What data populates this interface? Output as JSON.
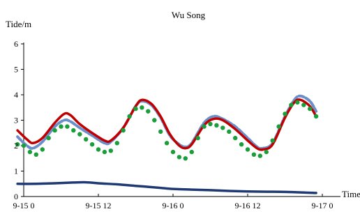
{
  "chart_data": {
    "type": "line",
    "title": "Wu Song",
    "ylabel": "Tide/m",
    "xlabel": "Time",
    "ylim": [
      0,
      6
    ],
    "yticks": [
      0,
      1,
      2,
      3,
      4,
      5,
      6
    ],
    "xlim": [
      0,
      48
    ],
    "xticks": [
      {
        "x": 0,
        "label": "9-15 0"
      },
      {
        "x": 12,
        "label": "9-15 12"
      },
      {
        "x": 24,
        "label": "9-16 0"
      },
      {
        "x": 36,
        "label": "9-16 12"
      },
      {
        "x": 48,
        "label": "9-17 0"
      }
    ],
    "grid": false,
    "legend": "none",
    "series": [
      {
        "color": "#c00000",
        "style": "solid",
        "points": [
          [
            -1,
            2.6
          ],
          [
            0.5,
            2.25
          ],
          [
            1.5,
            2.1
          ],
          [
            3,
            2.3
          ],
          [
            5,
            2.9
          ],
          [
            6.5,
            3.25
          ],
          [
            7.5,
            3.2
          ],
          [
            9,
            2.85
          ],
          [
            11,
            2.5
          ],
          [
            13,
            2.2
          ],
          [
            14,
            2.2
          ],
          [
            16,
            2.7
          ],
          [
            18,
            3.55
          ],
          [
            19,
            3.8
          ],
          [
            20.5,
            3.65
          ],
          [
            22,
            3.15
          ],
          [
            23.5,
            2.45
          ],
          [
            25,
            2.0
          ],
          [
            26,
            1.9
          ],
          [
            27,
            2.05
          ],
          [
            29,
            2.8
          ],
          [
            30.5,
            3.05
          ],
          [
            32,
            3.0
          ],
          [
            34,
            2.65
          ],
          [
            36,
            2.2
          ],
          [
            37.5,
            1.9
          ],
          [
            38.5,
            1.85
          ],
          [
            40,
            2.05
          ],
          [
            42,
            3.1
          ],
          [
            43.5,
            3.7
          ],
          [
            44.5,
            3.8
          ],
          [
            46,
            3.55
          ],
          [
            47,
            3.15
          ]
        ]
      },
      {
        "color": "#6b8fc9",
        "style": "dashed",
        "points": [
          [
            -1,
            2.35
          ],
          [
            0.5,
            2.0
          ],
          [
            1.5,
            1.9
          ],
          [
            3,
            2.15
          ],
          [
            5,
            2.75
          ],
          [
            6.5,
            3.0
          ],
          [
            7.5,
            2.95
          ],
          [
            9,
            2.7
          ],
          [
            11,
            2.4
          ],
          [
            13,
            2.1
          ],
          [
            14,
            2.15
          ],
          [
            16,
            2.7
          ],
          [
            18,
            3.55
          ],
          [
            19,
            3.75
          ],
          [
            20.5,
            3.6
          ],
          [
            22,
            3.1
          ],
          [
            23.5,
            2.4
          ],
          [
            25,
            2.05
          ],
          [
            26,
            1.95
          ],
          [
            27,
            2.1
          ],
          [
            29,
            2.9
          ],
          [
            30.5,
            3.15
          ],
          [
            32,
            3.05
          ],
          [
            34,
            2.75
          ],
          [
            36,
            2.3
          ],
          [
            37.5,
            1.95
          ],
          [
            38.5,
            1.9
          ],
          [
            40,
            2.1
          ],
          [
            42,
            3.15
          ],
          [
            43.5,
            3.8
          ],
          [
            44.5,
            3.95
          ],
          [
            46,
            3.75
          ],
          [
            47,
            3.35
          ]
        ]
      },
      {
        "color": "#1a9e3a",
        "style": "dotted",
        "points": [
          [
            -1,
            2.05
          ],
          [
            0,
            2.0
          ],
          [
            1,
            1.75
          ],
          [
            2,
            1.65
          ],
          [
            3,
            1.85
          ],
          [
            4,
            2.3
          ],
          [
            5,
            2.6
          ],
          [
            6,
            2.75
          ],
          [
            7,
            2.75
          ],
          [
            8,
            2.6
          ],
          [
            9,
            2.45
          ],
          [
            10,
            2.25
          ],
          [
            11,
            2.05
          ],
          [
            12,
            1.85
          ],
          [
            13,
            1.75
          ],
          [
            14,
            1.8
          ],
          [
            15,
            2.1
          ],
          [
            16,
            2.6
          ],
          [
            17,
            3.15
          ],
          [
            18,
            3.45
          ],
          [
            19,
            3.5
          ],
          [
            20,
            3.35
          ],
          [
            21,
            3.0
          ],
          [
            22,
            2.55
          ],
          [
            23,
            2.1
          ],
          [
            24,
            1.75
          ],
          [
            25,
            1.55
          ],
          [
            26,
            1.5
          ],
          [
            27,
            1.75
          ],
          [
            28,
            2.3
          ],
          [
            29,
            2.75
          ],
          [
            30,
            2.85
          ],
          [
            31,
            2.8
          ],
          [
            32,
            2.7
          ],
          [
            33,
            2.55
          ],
          [
            34,
            2.3
          ],
          [
            35,
            2.05
          ],
          [
            36,
            1.85
          ],
          [
            37,
            1.65
          ],
          [
            38,
            1.6
          ],
          [
            39,
            1.75
          ],
          [
            40,
            2.2
          ],
          [
            41,
            2.75
          ],
          [
            42,
            3.25
          ],
          [
            43,
            3.6
          ],
          [
            44,
            3.7
          ],
          [
            45,
            3.6
          ],
          [
            46,
            3.45
          ],
          [
            47,
            3.15
          ]
        ]
      },
      {
        "color": "#1f3a73",
        "style": "solid",
        "points": [
          [
            -1,
            0.5
          ],
          [
            2,
            0.5
          ],
          [
            5,
            0.52
          ],
          [
            8,
            0.55
          ],
          [
            10,
            0.56
          ],
          [
            12,
            0.52
          ],
          [
            15,
            0.48
          ],
          [
            18,
            0.42
          ],
          [
            20,
            0.38
          ],
          [
            22,
            0.34
          ],
          [
            24,
            0.3
          ],
          [
            27,
            0.27
          ],
          [
            30,
            0.25
          ],
          [
            33,
            0.22
          ],
          [
            36,
            0.2
          ],
          [
            39,
            0.19
          ],
          [
            42,
            0.18
          ],
          [
            45,
            0.16
          ],
          [
            47,
            0.14
          ]
        ]
      }
    ]
  }
}
